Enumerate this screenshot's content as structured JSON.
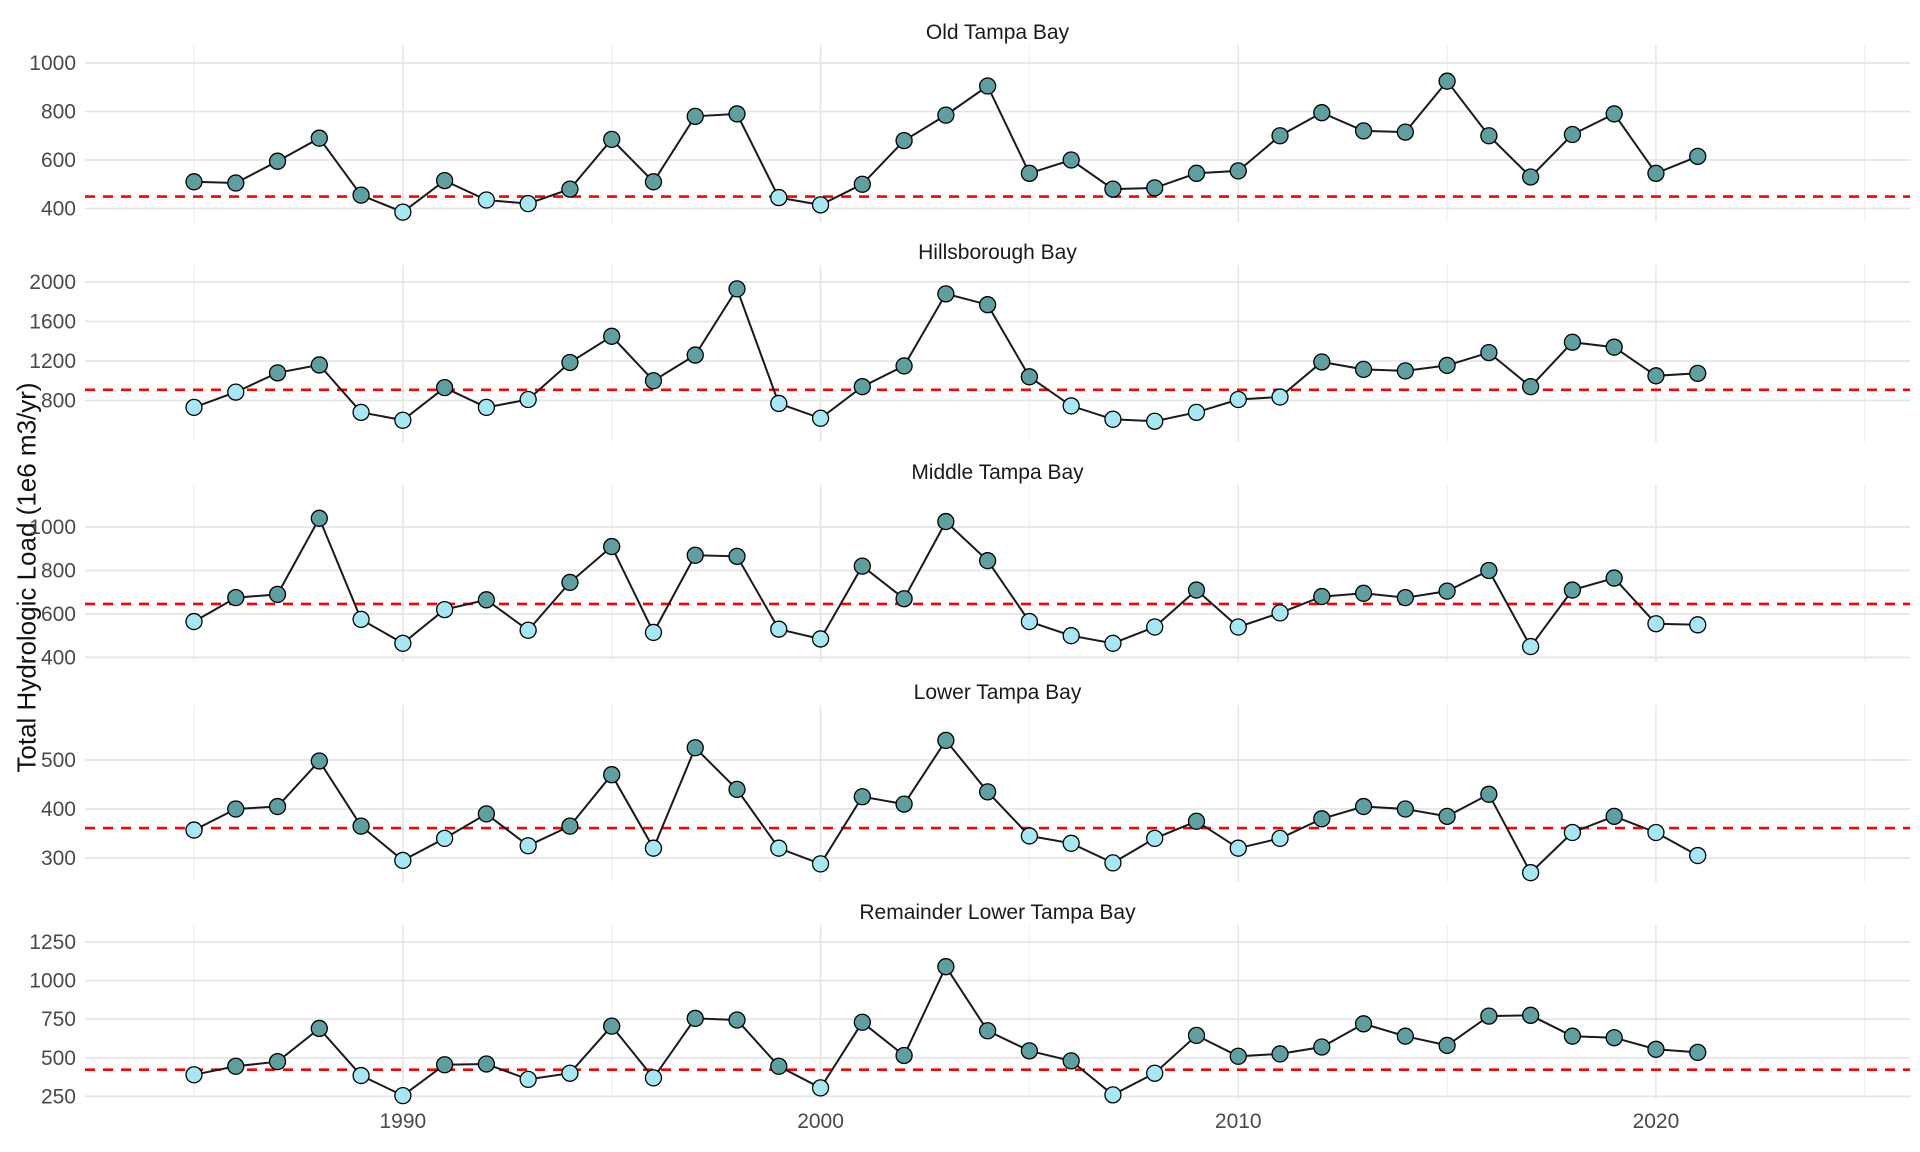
{
  "chart_data": {
    "type": "line",
    "figure": "faceted annual time series, points colored by exceedance of threshold",
    "ylabel": "Total Hydrologic Load (1e6 m3/yr)",
    "xlabel": "",
    "x_tick_labels": [
      1990,
      2000,
      2010,
      2020
    ],
    "x_minor_gridlines": [
      1985,
      1995,
      2005,
      2015,
      2025
    ],
    "x_range": [
      1984,
      2026
    ],
    "years": [
      1985,
      1986,
      1987,
      1988,
      1989,
      1990,
      1991,
      1992,
      1993,
      1994,
      1995,
      1996,
      1997,
      1998,
      1999,
      2000,
      2001,
      2002,
      2003,
      2004,
      2005,
      2006,
      2007,
      2008,
      2009,
      2010,
      2011,
      2012,
      2013,
      2014,
      2015,
      2016,
      2017,
      2018,
      2019,
      2020,
      2021
    ],
    "legend": "none (point color: above threshold = dark teal, below threshold = light cyan; red dashed = threshold)",
    "panels": [
      {
        "title": "Old Tampa Bay",
        "threshold": 449,
        "yticks": [
          1000,
          800,
          600,
          400
        ],
        "values": [
          510,
          505,
          595,
          690,
          455,
          385,
          515,
          435,
          420,
          480,
          685,
          510,
          780,
          790,
          445,
          415,
          500,
          680,
          785,
          905,
          545,
          600,
          480,
          485,
          545,
          555,
          700,
          795,
          720,
          715,
          925,
          700,
          530,
          705,
          790,
          545,
          615
        ]
      },
      {
        "title": "Hillsborough Bay",
        "threshold": 908,
        "yticks": [
          2000,
          1600,
          1200,
          800
        ],
        "values": [
          730,
          885,
          1080,
          1160,
          680,
          600,
          930,
          730,
          810,
          1185,
          1450,
          1000,
          1260,
          1930,
          770,
          620,
          940,
          1150,
          1880,
          1770,
          1040,
          745,
          610,
          590,
          680,
          810,
          835,
          1190,
          1115,
          1100,
          1155,
          1285,
          940,
          1390,
          1340,
          1050,
          1075
        ]
      },
      {
        "title": "Middle Tampa Bay",
        "threshold": 646,
        "yticks": [
          1000,
          800,
          600,
          400
        ],
        "values": [
          565,
          675,
          690,
          1040,
          575,
          465,
          620,
          665,
          525,
          745,
          910,
          515,
          870,
          865,
          530,
          485,
          820,
          670,
          1025,
          845,
          565,
          500,
          465,
          540,
          710,
          540,
          605,
          680,
          695,
          675,
          705,
          800,
          450,
          710,
          765,
          555,
          550
        ]
      },
      {
        "title": "Lower Tampa Bay",
        "threshold": 361,
        "yticks": [
          500,
          400,
          300
        ],
        "values": [
          357,
          400,
          405,
          498,
          365,
          295,
          340,
          390,
          325,
          365,
          470,
          320,
          525,
          440,
          320,
          288,
          425,
          410,
          540,
          435,
          345,
          330,
          290,
          340,
          375,
          320,
          340,
          380,
          405,
          400,
          385,
          430,
          270,
          352,
          385,
          352,
          305
        ]
      },
      {
        "title": "Remainder Lower Tampa Bay",
        "threshold": 423,
        "yticks": [
          1250,
          1000,
          750,
          500,
          250
        ],
        "values": [
          390,
          445,
          475,
          690,
          385,
          255,
          455,
          460,
          360,
          400,
          705,
          370,
          755,
          745,
          445,
          305,
          730,
          515,
          1090,
          675,
          545,
          480,
          260,
          400,
          645,
          510,
          525,
          570,
          720,
          640,
          580,
          770,
          775,
          640,
          630,
          555,
          535
        ]
      }
    ],
    "colors": {
      "point_above": "#5E9FA0",
      "point_below": "#A5E8F4",
      "point_outline": "#000000",
      "series_line": "#1A1A1A",
      "threshold_line": "#FE0000",
      "gridline_major": "#E6E6E6",
      "gridline_minor": "#EFEFEF",
      "tick_label": "#4a4a4a",
      "background": "#FFFFFF"
    }
  }
}
